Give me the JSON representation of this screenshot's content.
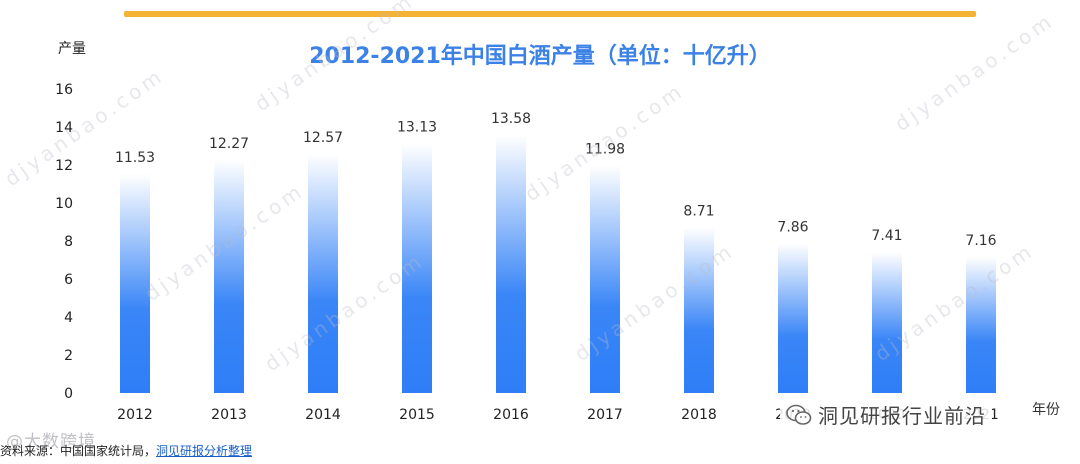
{
  "title": "2012-2021年中国白酒产量（单位：十亿升）",
  "y_axis_label": "产量",
  "x_axis_unit": "年份",
  "source": {
    "prefix": "资料来源：",
    "org": "中国国家统计局，",
    "analyst": "洞见研报分析整理"
  },
  "watermark": "djyanbao.com",
  "wechat_account": "洞见研报行业前沿",
  "corner_logo": "@大数跨境",
  "colors": {
    "accent_bar": "#f5b335",
    "title": "#3c82e6",
    "bar_bottom": "#2f7ef7",
    "bar_top": "#ffffff"
  },
  "chart_data": {
    "type": "bar",
    "categories": [
      "2012",
      "2013",
      "2014",
      "2015",
      "2016",
      "2017",
      "2018",
      "2019",
      "2020",
      "2021"
    ],
    "values": [
      11.53,
      12.27,
      12.57,
      13.13,
      13.58,
      11.98,
      8.71,
      7.86,
      7.41,
      7.16
    ],
    "ylim": [
      0,
      16
    ],
    "yticks": [
      0,
      2,
      4,
      6,
      8,
      10,
      12,
      14,
      16
    ],
    "grid": false,
    "legend": "none",
    "data_labels": [
      "11.53",
      "12.27",
      "12.57",
      "13.13",
      "13.58",
      "11.98",
      "8.71",
      "7.86",
      "7.41",
      "7.16"
    ]
  }
}
